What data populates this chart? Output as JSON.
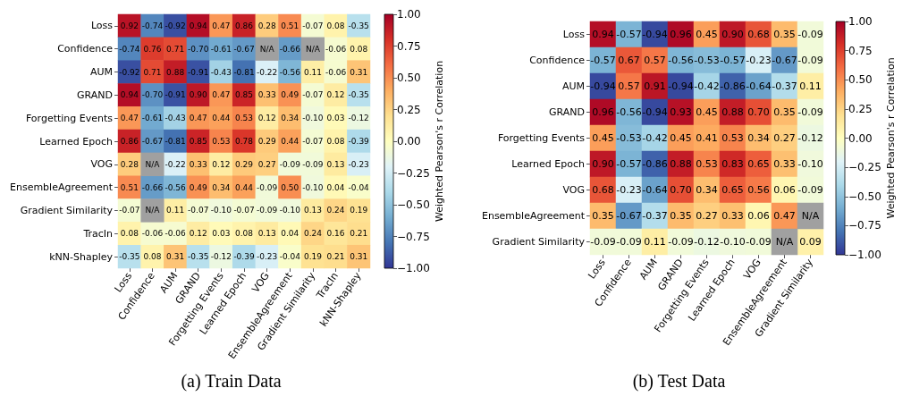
{
  "chart_data": [
    {
      "type": "heatmap",
      "title": "(a) Train Data",
      "clabel": "Weighted Pearson's r Correlation",
      "data_labels": true,
      "categories": [
        "Loss",
        "Confidence",
        "AUM",
        "GRAND",
        "Forgetting Events",
        "Learned Epoch",
        "VOG",
        "EnsembleAgreement",
        "Gradient Similarity",
        "TracIn",
        "kNN-Shapley"
      ],
      "y_categories": [
        "Loss",
        "Confidence",
        "AUM",
        "GRAND",
        "Forgetting Events",
        "Learned Epoch",
        "VOG",
        "EnsembleAgreement",
        "Gradient Similarity",
        "TracIn",
        "kNN-Shapley"
      ],
      "cells": [
        [
          0.92,
          -0.74,
          -0.92,
          0.94,
          0.47,
          0.86,
          0.28,
          0.51,
          -0.07,
          0.08,
          -0.35
        ],
        [
          -0.74,
          0.76,
          0.71,
          -0.7,
          -0.61,
          -0.67,
          null,
          -0.66,
          null,
          -0.06,
          0.08
        ],
        [
          -0.92,
          0.71,
          0.88,
          -0.91,
          -0.43,
          -0.81,
          -0.22,
          -0.56,
          0.11,
          -0.06,
          0.31
        ],
        [
          0.94,
          -0.7,
          -0.91,
          0.9,
          0.47,
          0.85,
          0.33,
          0.49,
          -0.07,
          0.12,
          -0.35
        ],
        [
          0.47,
          -0.61,
          -0.43,
          0.47,
          0.44,
          0.53,
          0.12,
          0.34,
          -0.1,
          0.03,
          -0.12
        ],
        [
          0.86,
          -0.67,
          -0.81,
          0.85,
          0.53,
          0.78,
          0.29,
          0.44,
          -0.07,
          0.08,
          -0.39
        ],
        [
          0.28,
          null,
          -0.22,
          0.33,
          0.12,
          0.29,
          0.27,
          -0.09,
          -0.09,
          0.13,
          -0.23
        ],
        [
          0.51,
          -0.66,
          -0.56,
          0.49,
          0.34,
          0.44,
          -0.09,
          0.5,
          -0.1,
          0.04,
          -0.04
        ],
        [
          -0.07,
          null,
          0.11,
          -0.07,
          -0.1,
          -0.07,
          -0.09,
          -0.1,
          0.13,
          0.24,
          0.19
        ],
        [
          0.08,
          -0.06,
          -0.06,
          0.12,
          0.03,
          0.08,
          0.13,
          0.04,
          0.24,
          0.16,
          0.21
        ],
        [
          -0.35,
          0.08,
          0.31,
          -0.35,
          -0.12,
          -0.39,
          -0.23,
          -0.04,
          0.19,
          0.21,
          0.31
        ]
      ],
      "cell_labels": [
        [
          "0.92",
          "-0.74",
          "-0.92",
          "0.94",
          "0.47",
          "0.86",
          "0.28",
          "0.51",
          "-0.07",
          "0.08",
          "-0.35"
        ],
        [
          "-0.74",
          "0.76",
          "0.71",
          "-0.70",
          "-0.61",
          "-0.67",
          "N/A",
          "-0.66",
          "N/A",
          "-0.06",
          "0.08"
        ],
        [
          "-0.92",
          "0.71",
          "0.88",
          "-0.91",
          "-0.43",
          "-0.81",
          "-0.22",
          "-0.56",
          "0.11",
          "-0.06",
          "0.31"
        ],
        [
          "0.94",
          "-0.70",
          "-0.91",
          "0.90",
          "0.47",
          "0.85",
          "0.33",
          "0.49",
          "-0.07",
          "0.12",
          "-0.35"
        ],
        [
          "0.47",
          "-0.61",
          "-0.43",
          "0.47",
          "0.44",
          "0.53",
          "0.12",
          "0.34",
          "-0.10",
          "0.03",
          "-0.12"
        ],
        [
          "0.86",
          "-0.67",
          "-0.81",
          "0.85",
          "0.53",
          "0.78",
          "0.29",
          "0.44",
          "-0.07",
          "0.08",
          "-0.39"
        ],
        [
          "0.28",
          "N/A",
          "-0.22",
          "0.33",
          "0.12",
          "0.29",
          "0.27",
          "-0.09",
          "-0.09",
          "0.13",
          "-0.23"
        ],
        [
          "0.51",
          "-0.66",
          "-0.56",
          "0.49",
          "0.34",
          "0.44",
          "-0.09",
          "0.50",
          "-0.10",
          "0.04",
          "-0.04"
        ],
        [
          "-0.07",
          "N/A",
          "0.11",
          "-0.07",
          "-0.10",
          "-0.07",
          "-0.09",
          "-0.10",
          "0.13",
          "0.24",
          "0.19"
        ],
        [
          "0.08",
          "-0.06",
          "-0.06",
          "0.12",
          "0.03",
          "0.08",
          "0.13",
          "0.04",
          "0.24",
          "0.16",
          "0.21"
        ],
        [
          "-0.35",
          "0.08",
          "0.31",
          "-0.35",
          "-0.12",
          "-0.39",
          "-0.23",
          "-0.04",
          "0.19",
          "0.21",
          "0.31"
        ]
      ],
      "clim": [
        -1,
        1
      ],
      "cticks": [
        {
          "value": -1,
          "label": "−1.00"
        },
        {
          "value": -0.75,
          "label": "−0.75"
        },
        {
          "value": -0.5,
          "label": "−0.50"
        },
        {
          "value": -0.25,
          "label": "−0.25"
        },
        {
          "value": 0,
          "label": "0.00"
        },
        {
          "value": 0.25,
          "label": "0.25"
        },
        {
          "value": 0.5,
          "label": "0.50"
        },
        {
          "value": 0.75,
          "label": "0.75"
        },
        {
          "value": 1,
          "label": "1.00"
        }
      ]
    },
    {
      "type": "heatmap",
      "title": "(b) Test Data",
      "clabel": "Weighted Pearson's r Correlation",
      "data_labels": true,
      "categories": [
        "Loss",
        "Confidence",
        "AUM",
        "GRAND",
        "Forgetting Events",
        "Learned Epoch",
        "VOG",
        "EnsembleAgreement",
        "Gradient Similarity"
      ],
      "y_categories": [
        "Loss",
        "Confidence",
        "AUM",
        "GRAND",
        "Forgetting Events",
        "Learned Epoch",
        "VOG",
        "EnsembleAgreement",
        "Gradient Similarity"
      ],
      "cells": [
        [
          0.94,
          -0.57,
          -0.94,
          0.96,
          0.45,
          0.9,
          0.68,
          0.35,
          -0.09
        ],
        [
          -0.57,
          0.67,
          0.57,
          -0.56,
          -0.53,
          -0.57,
          -0.23,
          -0.67,
          -0.09
        ],
        [
          -0.94,
          0.57,
          0.91,
          -0.94,
          -0.42,
          -0.86,
          -0.64,
          -0.37,
          0.11
        ],
        [
          0.96,
          -0.56,
          -0.94,
          0.93,
          0.45,
          0.88,
          0.7,
          0.35,
          -0.09
        ],
        [
          0.45,
          -0.53,
          -0.42,
          0.45,
          0.41,
          0.53,
          0.34,
          0.27,
          -0.12
        ],
        [
          0.9,
          -0.57,
          -0.86,
          0.88,
          0.53,
          0.83,
          0.65,
          0.33,
          -0.1
        ],
        [
          0.68,
          -0.23,
          -0.64,
          0.7,
          0.34,
          0.65,
          0.56,
          0.06,
          -0.09
        ],
        [
          0.35,
          -0.67,
          -0.37,
          0.35,
          0.27,
          0.33,
          0.06,
          0.47,
          null
        ],
        [
          -0.09,
          -0.09,
          0.11,
          -0.09,
          -0.12,
          -0.1,
          -0.09,
          null,
          0.09
        ]
      ],
      "cell_labels": [
        [
          "0.94",
          "-0.57",
          "-0.94",
          "0.96",
          "0.45",
          "0.90",
          "0.68",
          "0.35",
          "-0.09"
        ],
        [
          "-0.57",
          "0.67",
          "0.57",
          "-0.56",
          "-0.53",
          "-0.57",
          "-0.23",
          "-0.67",
          "-0.09"
        ],
        [
          "-0.94",
          "0.57",
          "0.91",
          "-0.94",
          "-0.42",
          "-0.86",
          "-0.64",
          "-0.37",
          "0.11"
        ],
        [
          "0.96",
          "-0.56",
          "-0.94",
          "0.93",
          "0.45",
          "0.88",
          "0.70",
          "0.35",
          "-0.09"
        ],
        [
          "0.45",
          "-0.53",
          "-0.42",
          "0.45",
          "0.41",
          "0.53",
          "0.34",
          "0.27",
          "-0.12"
        ],
        [
          "0.90",
          "-0.57",
          "-0.86",
          "0.88",
          "0.53",
          "0.83",
          "0.65",
          "0.33",
          "-0.10"
        ],
        [
          "0.68",
          "-0.23",
          "-0.64",
          "0.70",
          "0.34",
          "0.65",
          "0.56",
          "0.06",
          "-0.09"
        ],
        [
          "0.35",
          "-0.67",
          "-0.37",
          "0.35",
          "0.27",
          "0.33",
          "0.06",
          "0.47",
          "N/A"
        ],
        [
          "-0.09",
          "-0.09",
          "0.11",
          "-0.09",
          "-0.12",
          "-0.10",
          "-0.09",
          "N/A",
          "0.09"
        ]
      ],
      "clim": [
        -1,
        1
      ],
      "cticks": [
        {
          "value": -1,
          "label": "−1.00"
        },
        {
          "value": -0.75,
          "label": "−0.75"
        },
        {
          "value": -0.5,
          "label": "−0.50"
        },
        {
          "value": -0.25,
          "label": "−0.25"
        },
        {
          "value": 0,
          "label": "0.00"
        },
        {
          "value": 0.25,
          "label": "0.25"
        },
        {
          "value": 0.5,
          "label": "0.50"
        },
        {
          "value": 0.75,
          "label": "0.75"
        },
        {
          "value": 1,
          "label": "1.00"
        }
      ]
    }
  ]
}
